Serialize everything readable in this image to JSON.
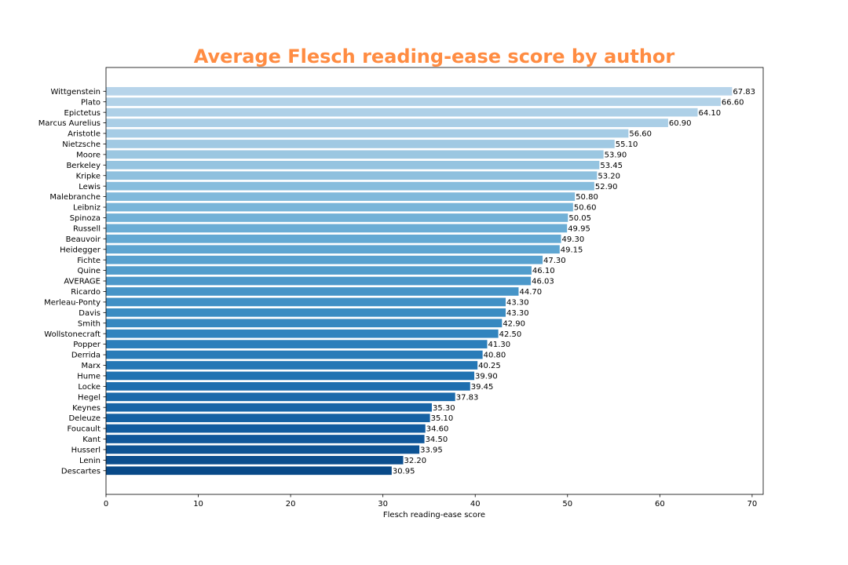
{
  "chart_data": {
    "type": "bar",
    "orientation": "horizontal",
    "title": "Average Flesch reading-ease score by author",
    "title_color": "#ff8c42",
    "xlabel": "Flesch reading-ease score",
    "ylabel": "",
    "xlim": [
      0,
      71.2
    ],
    "xticks": [
      0,
      10,
      20,
      30,
      40,
      50,
      60,
      70
    ],
    "grid": false,
    "colormap": "Blues",
    "categories": [
      "Wittgenstein",
      "Plato",
      "Epictetus",
      "Marcus Aurelius",
      "Aristotle",
      "Nietzsche",
      "Moore",
      "Berkeley",
      "Kripke",
      "Lewis",
      "Malebranche",
      "Leibniz",
      "Spinoza",
      "Russell",
      "Beauvoir",
      "Heidegger",
      "Fichte",
      "Quine",
      "AVERAGE",
      "Ricardo",
      "Merleau-Ponty",
      "Davis",
      "Smith",
      "Wollstonecraft",
      "Popper",
      "Derrida",
      "Marx",
      "Hume",
      "Locke",
      "Hegel",
      "Keynes",
      "Deleuze",
      "Foucault",
      "Kant",
      "Husserl",
      "Lenin",
      "Descartes"
    ],
    "values": [
      67.83,
      66.6,
      64.1,
      60.9,
      56.6,
      55.1,
      53.9,
      53.45,
      53.2,
      52.9,
      50.8,
      50.6,
      50.05,
      49.95,
      49.3,
      49.15,
      47.3,
      46.1,
      46.03,
      44.7,
      43.3,
      43.3,
      42.9,
      42.5,
      41.3,
      40.8,
      40.25,
      39.9,
      39.45,
      37.83,
      35.3,
      35.1,
      34.6,
      34.5,
      33.95,
      32.2,
      30.95
    ],
    "value_labels": [
      "67.83",
      "66.60",
      "64.10",
      "60.90",
      "56.60",
      "55.10",
      "53.90",
      "53.45",
      "53.20",
      "52.90",
      "50.80",
      "50.60",
      "50.05",
      "49.95",
      "49.30",
      "49.15",
      "47.30",
      "46.10",
      "46.03",
      "44.70",
      "43.30",
      "43.30",
      "42.90",
      "42.50",
      "41.30",
      "40.80",
      "40.25",
      "39.90",
      "39.45",
      "37.83",
      "35.30",
      "35.10",
      "34.60",
      "34.50",
      "33.95",
      "32.20",
      "30.95"
    ],
    "colors": [
      "#b7d4ea",
      "#b2d2e8",
      "#aed0e7",
      "#aacee6",
      "#a5cce5",
      "#a0c9e3",
      "#9bc7e1",
      "#95c4e0",
      "#8ec0de",
      "#87bddd",
      "#80b9db",
      "#79b5d9",
      "#72b1d7",
      "#6badd5",
      "#64a9d3",
      "#5ea5d1",
      "#58a1cf",
      "#529dcc",
      "#4c98ca",
      "#4694c7",
      "#4190c5",
      "#3b8cc2",
      "#3688c0",
      "#3184be",
      "#2d7fbb",
      "#297bb8",
      "#2577b5",
      "#2173b2",
      "#1e6eaf",
      "#1b6aab",
      "#1865a7",
      "#1561a3",
      "#125c9f",
      "#10579a",
      "#0d5394",
      "#0b4e8e",
      "#084988"
    ]
  }
}
